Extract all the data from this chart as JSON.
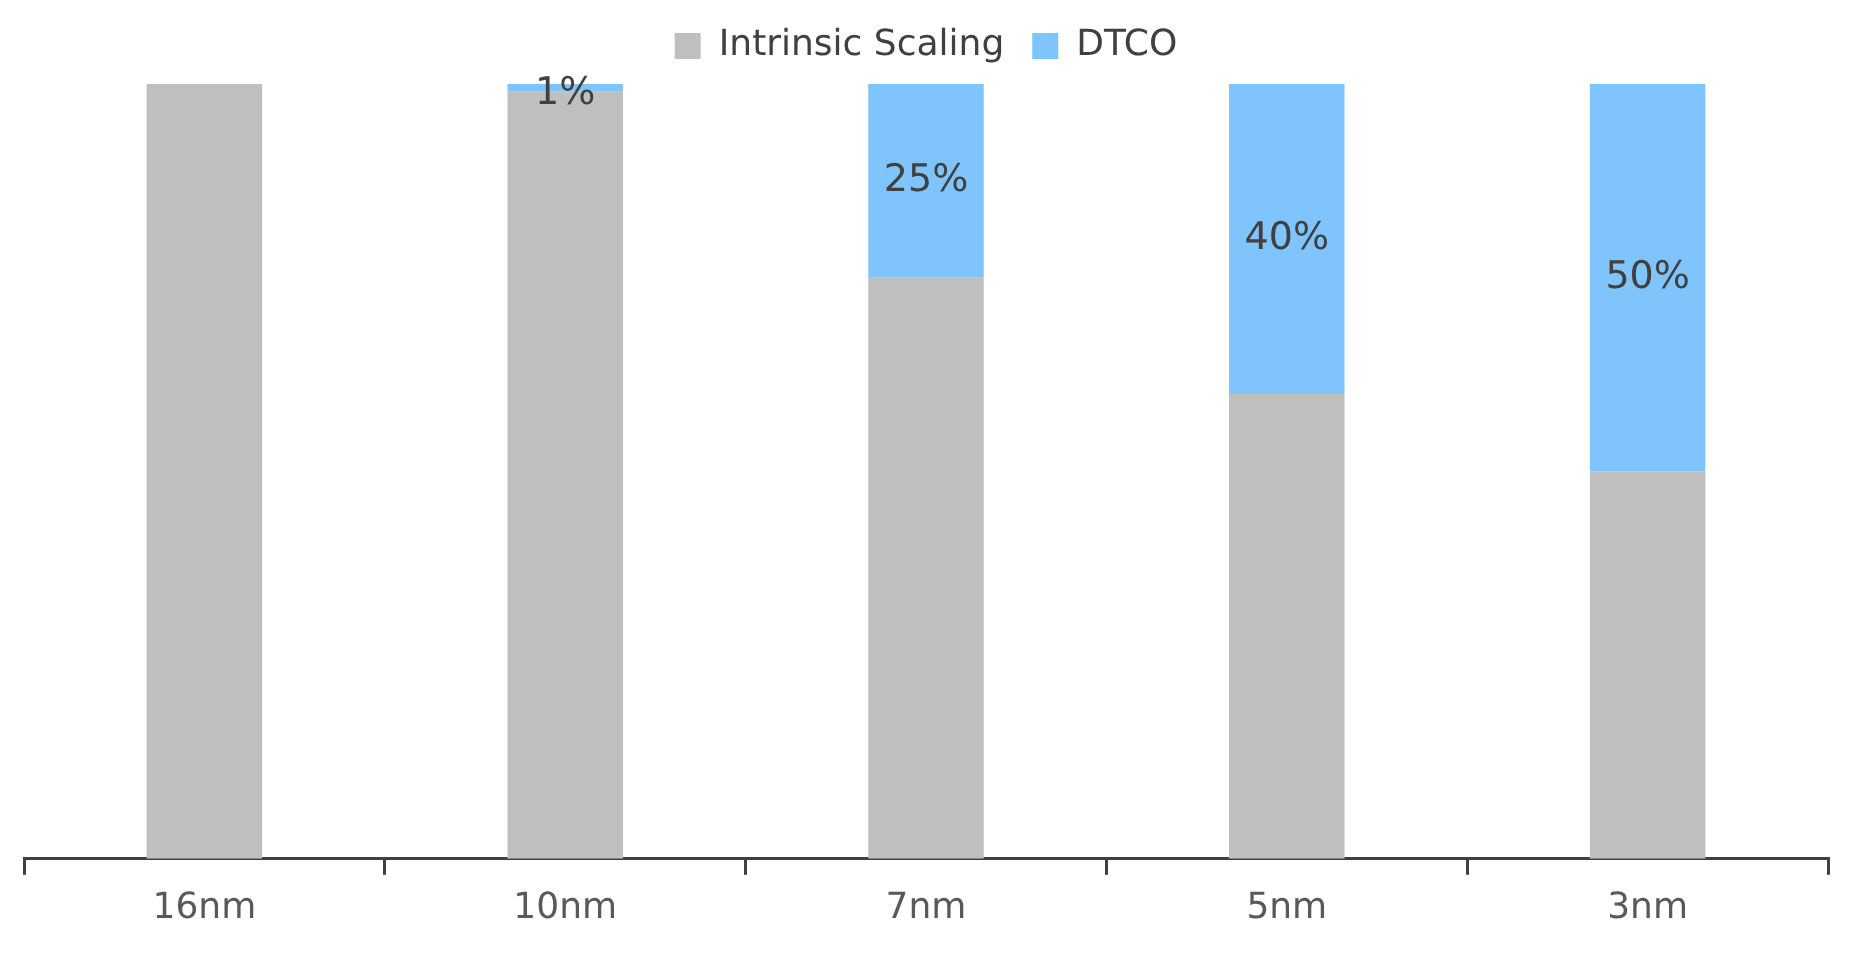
{
  "chart_data": {
    "type": "bar",
    "stacked": true,
    "legend": "top",
    "grid": false,
    "ylim": [
      0,
      100
    ],
    "tick_labels": "x",
    "categories": [
      "16nm",
      "10nm",
      "7nm",
      "5nm",
      "3nm"
    ],
    "series": [
      {
        "name": "Intrinsic Scaling",
        "color": "#bfbfbf",
        "values": [
          100,
          99,
          75,
          60,
          50
        ]
      },
      {
        "name": "DTCO",
        "color": "#7fc4fd",
        "values": [
          null,
          1,
          25,
          40,
          50
        ],
        "value_labels": [
          null,
          "1%",
          "25%",
          "40%",
          "50%"
        ]
      }
    ]
  }
}
